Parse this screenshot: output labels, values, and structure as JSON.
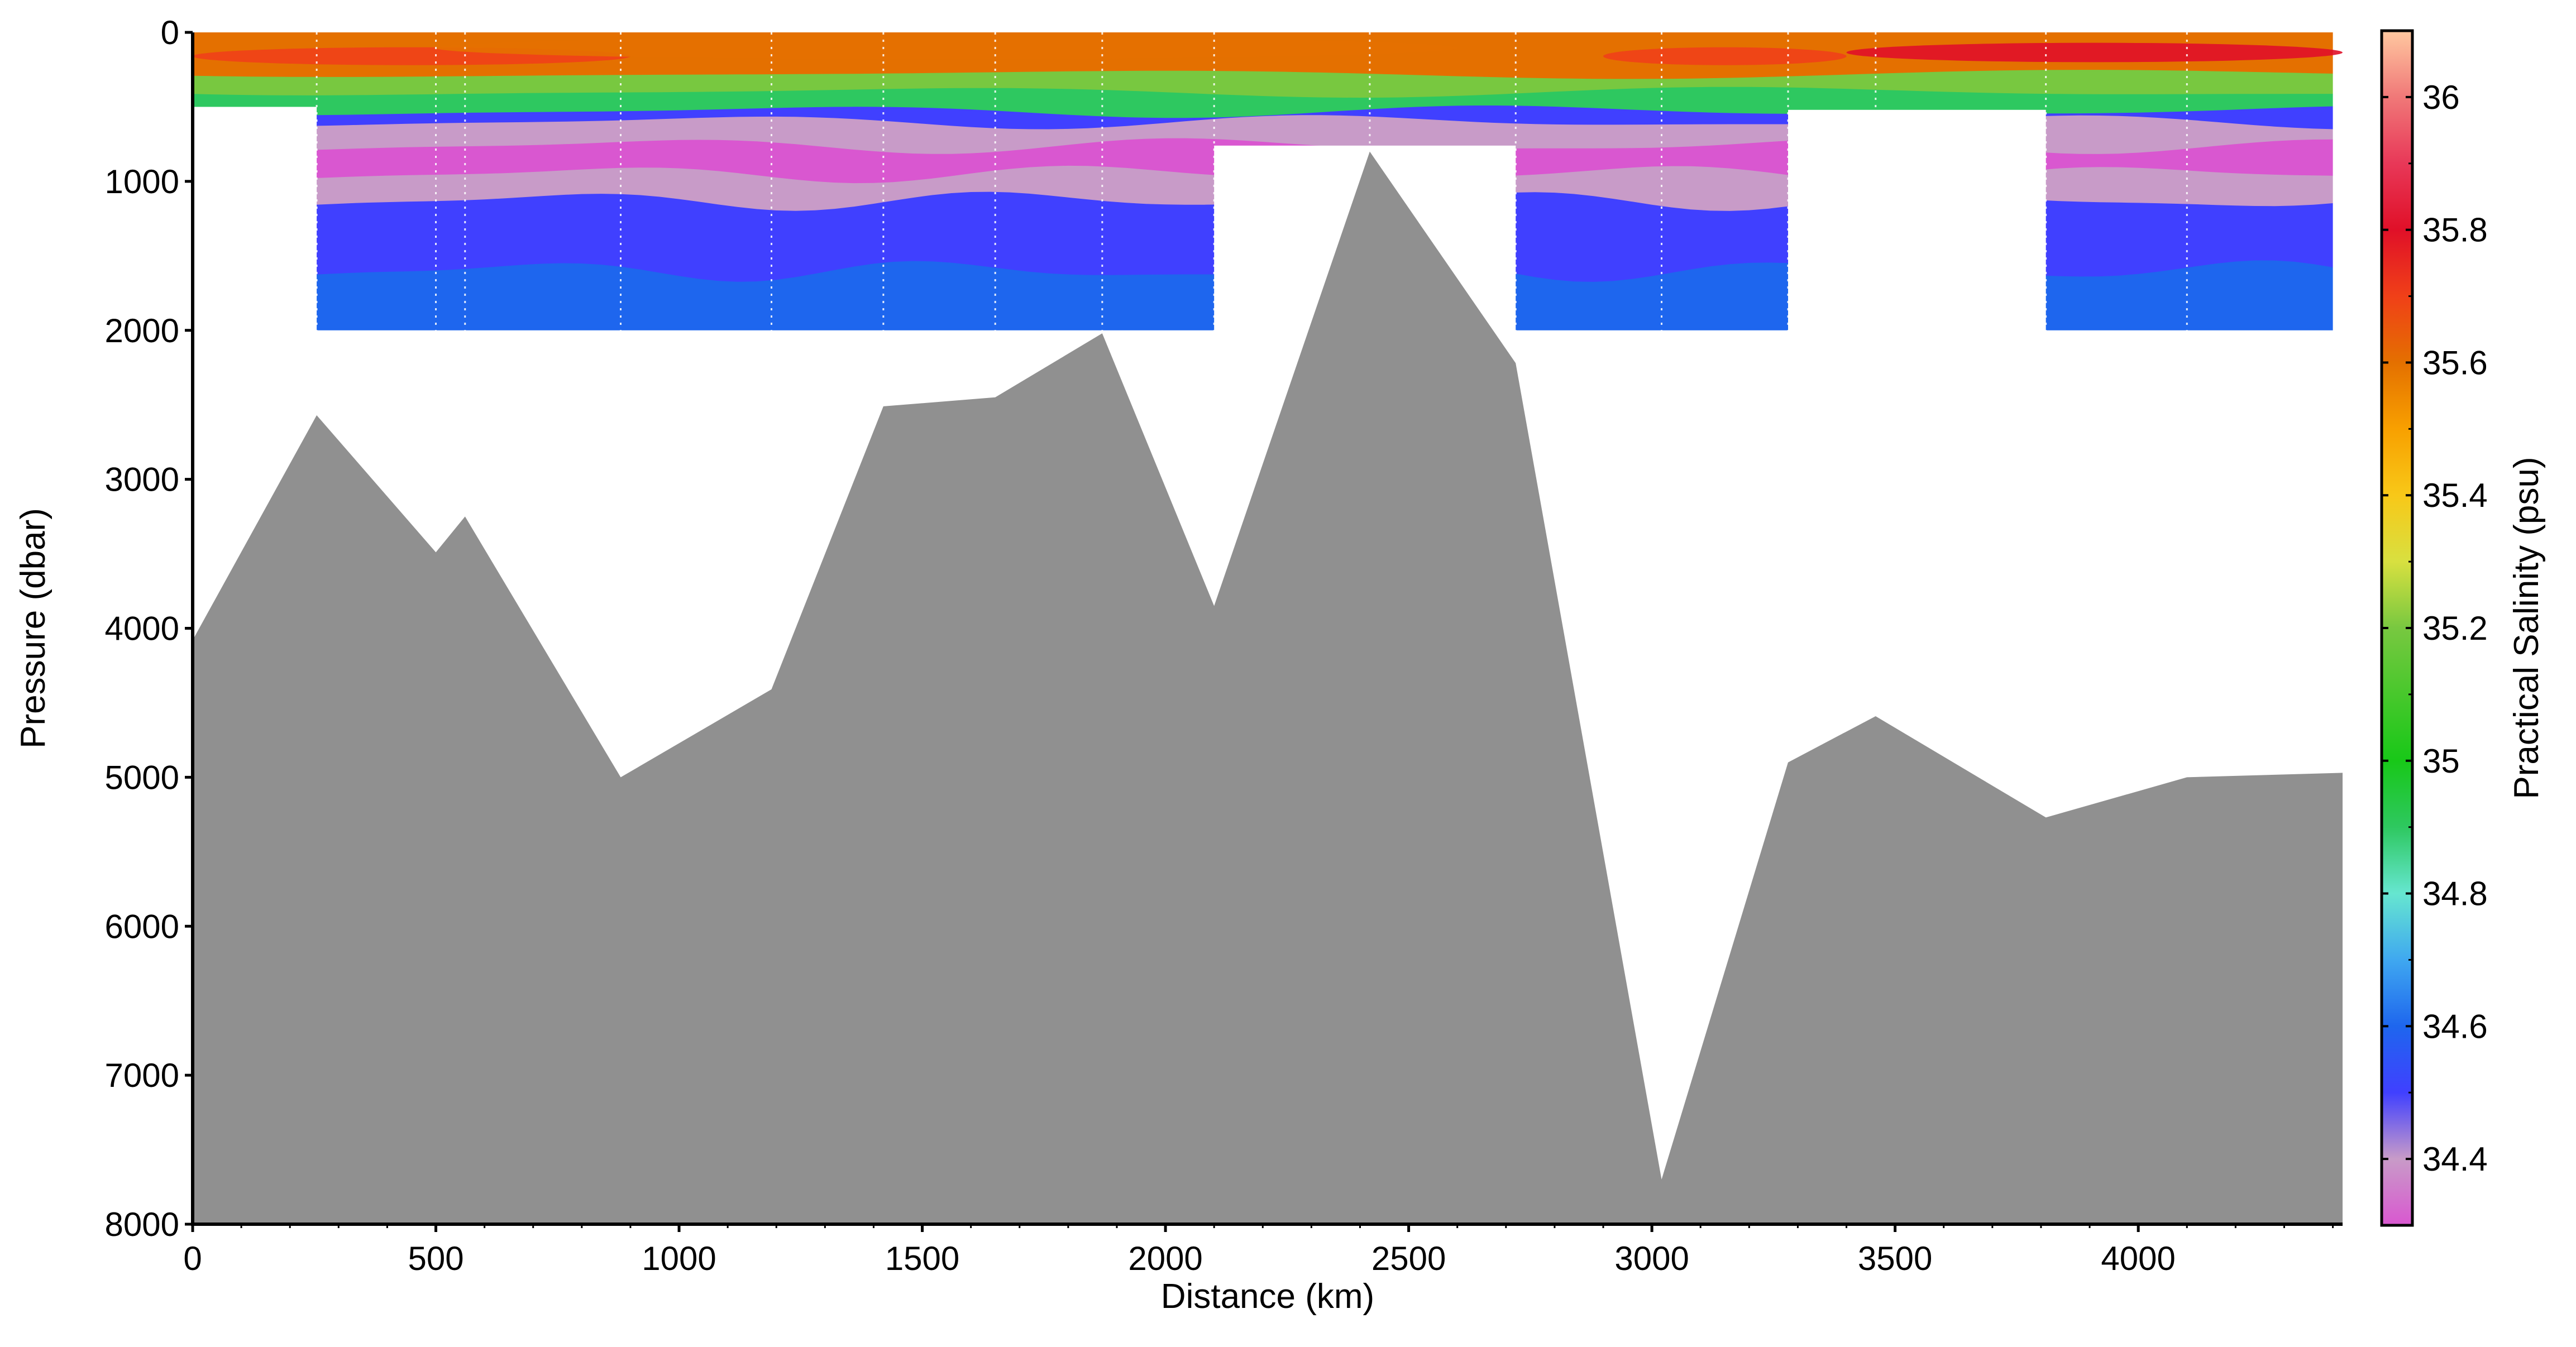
{
  "chart_data": {
    "type": "heatmap",
    "xlabel": "Distance (km)",
    "ylabel": "Pressure (dbar)",
    "colorbar_label": "Practical Salinity (psu)",
    "xlim": [
      0,
      4420
    ],
    "ylim": [
      8000,
      0
    ],
    "x_ticks": [
      0,
      500,
      1000,
      1500,
      2000,
      2500,
      3000,
      3500,
      4000
    ],
    "y_ticks": [
      0,
      1000,
      2000,
      3000,
      4000,
      5000,
      6000,
      7000,
      8000
    ],
    "colorbar_range": [
      34.3,
      36.1
    ],
    "colorbar_ticks": [
      "34.4",
      "34.6",
      "34.8",
      "35",
      "35.2",
      "35.4",
      "35.6",
      "35.8",
      "36"
    ],
    "colorbar_stops": [
      {
        "v": 34.3,
        "c": "#d957d0"
      },
      {
        "v": 34.4,
        "c": "#c89bc8"
      },
      {
        "v": 34.5,
        "c": "#4040ff"
      },
      {
        "v": 34.6,
        "c": "#1e66ee"
      },
      {
        "v": 34.7,
        "c": "#3fa8f0"
      },
      {
        "v": 34.8,
        "c": "#66e6d0"
      },
      {
        "v": 34.9,
        "c": "#2ec860"
      },
      {
        "v": 35.0,
        "c": "#18c818"
      },
      {
        "v": 35.2,
        "c": "#78c840"
      },
      {
        "v": 35.3,
        "c": "#d8e040"
      },
      {
        "v": 35.4,
        "c": "#f8c818"
      },
      {
        "v": 35.5,
        "c": "#f8a000"
      },
      {
        "v": 35.6,
        "c": "#e47000"
      },
      {
        "v": 35.7,
        "c": "#f04018"
      },
      {
        "v": 35.8,
        "c": "#e01028"
      },
      {
        "v": 35.9,
        "c": "#e83858"
      },
      {
        "v": 36.0,
        "c": "#f07878"
      },
      {
        "v": 36.1,
        "c": "#ffc8a0"
      }
    ],
    "bathymetry_color": "#909090",
    "bathymetry": [
      [
        0,
        4080
      ],
      [
        255,
        2570
      ],
      [
        500,
        3490
      ],
      [
        560,
        3250
      ],
      [
        880,
        5000
      ],
      [
        1190,
        4410
      ],
      [
        1420,
        2510
      ],
      [
        1650,
        2450
      ],
      [
        1870,
        2020
      ],
      [
        2100,
        3850
      ],
      [
        2420,
        800
      ],
      [
        2720,
        2220
      ],
      [
        3020,
        7700
      ],
      [
        3280,
        4900
      ],
      [
        3460,
        4590
      ],
      [
        3810,
        5270
      ],
      [
        4100,
        5000
      ],
      [
        4420,
        4970
      ]
    ],
    "stations": [
      0,
      255,
      500,
      560,
      880,
      1190,
      1420,
      1650,
      1870,
      2100,
      2420,
      2720,
      3020,
      3280,
      3460,
      3810,
      4100,
      4420
    ],
    "data_gaps": [
      {
        "x": [
          0,
          255
        ],
        "from_pressure": 500
      },
      {
        "x": [
          2100,
          2720
        ],
        "from_pressure": 760
      },
      {
        "x": [
          3280,
          3810
        ],
        "from_pressure": 520
      }
    ],
    "section_max_pressure": 2000,
    "salinity_layers": [
      {
        "top": 0,
        "salinity": 35.6,
        "note": "surface high salinity tongue"
      },
      {
        "top": 280,
        "salinity": 35.2
      },
      {
        "top": 400,
        "salinity": 34.9
      },
      {
        "top": 530,
        "salinity": 34.5
      },
      {
        "top": 600,
        "salinity": 34.4
      },
      {
        "top": 760,
        "salinity": 34.3
      },
      {
        "top": 950,
        "salinity": 34.4
      },
      {
        "top": 1130,
        "salinity": 34.5
      },
      {
        "top": 1600,
        "salinity": 34.6
      }
    ],
    "features": [
      {
        "x": [
          3400,
          4420
        ],
        "p": [
          70,
          200
        ],
        "salinity": 35.8
      },
      {
        "x": [
          2900,
          3400
        ],
        "p": [
          100,
          220
        ],
        "salinity": 35.7
      },
      {
        "x": [
          0,
          900
        ],
        "p": [
          100,
          220
        ],
        "salinity": 35.7
      },
      {
        "x": [
          500,
          2600
        ],
        "p": [
          30,
          180
        ],
        "salinity": 35.6
      }
    ]
  }
}
